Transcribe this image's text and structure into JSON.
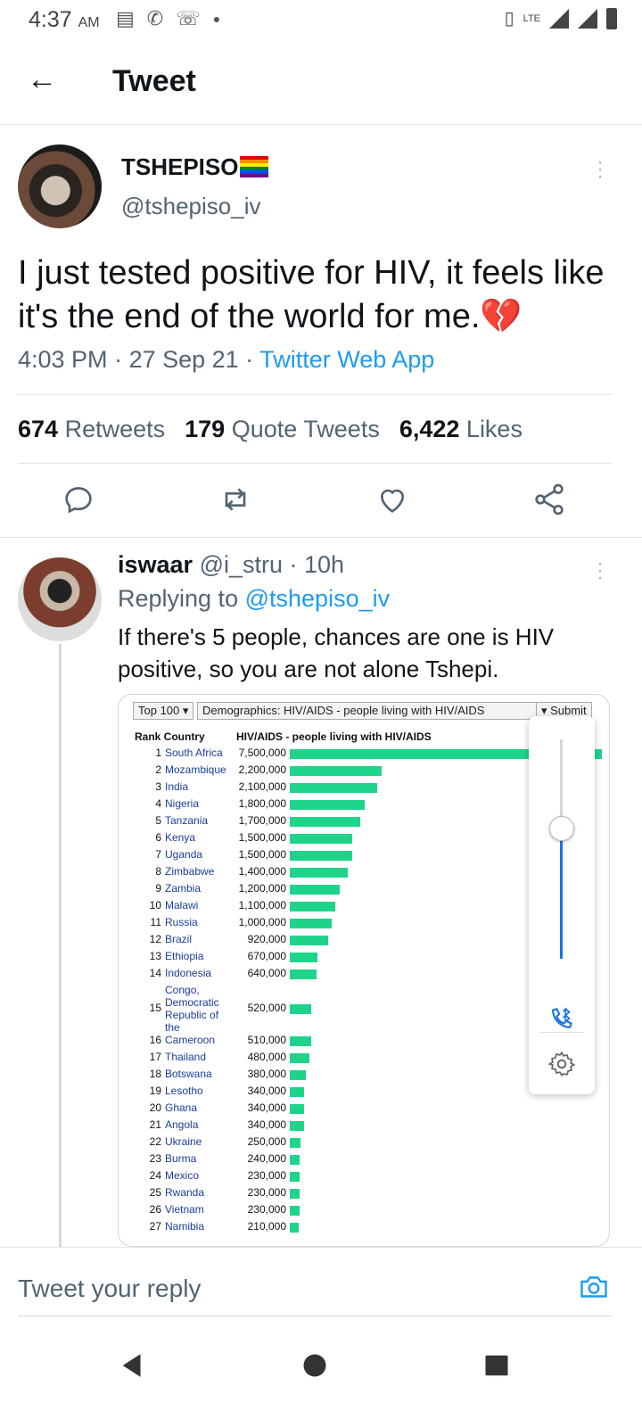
{
  "status_bar": {
    "time": "4:37",
    "ampm": "AM",
    "lte": "LTE"
  },
  "header": {
    "title": "Tweet"
  },
  "tweet": {
    "display_name": "TSHEPISO",
    "handle": "@tshepiso_iv",
    "text": "I just tested positive for HIV, it feels like it's the end of the world for me.",
    "emoji": "💔",
    "time": "4:03 PM",
    "date": "27 Sep 21",
    "source": "Twitter Web App",
    "stats": {
      "retweets_count": "674",
      "retweets_label": "Retweets",
      "quotes_count": "179",
      "quotes_label": "Quote Tweets",
      "likes_count": "6,422",
      "likes_label": "Likes"
    }
  },
  "reply": {
    "display_name": "iswaar",
    "handle": "@i_stru",
    "age": "10h",
    "replying_label": "Replying to",
    "replying_to": "@tshepiso_iv",
    "text": "If there's 5 people, chances are one is HIV positive, so you are not alone Tshepi."
  },
  "media": {
    "select_top": "Top 100 ▾",
    "select_topic": "Demographics: HIV/AIDS - people living with HIV/AIDS",
    "submit": "▾ Submit",
    "col_rank_country": "Rank Country",
    "col_value": "HIV/AIDS - people living with HIV/AIDS"
  },
  "chart_data": {
    "type": "bar",
    "title": "HIV/AIDS - people living with HIV/AIDS",
    "categories": [
      "South Africa",
      "Mozambique",
      "India",
      "Nigeria",
      "Tanzania",
      "Kenya",
      "Uganda",
      "Zimbabwe",
      "Zambia",
      "Malawi",
      "Russia",
      "Brazil",
      "Ethiopia",
      "Indonesia",
      "Congo, Democratic Republic of the",
      "Cameroon",
      "Thailand",
      "Botswana",
      "Lesotho",
      "Ghana",
      "Angola",
      "Ukraine",
      "Burma",
      "Mexico",
      "Rwanda",
      "Vietnam",
      "Namibia"
    ],
    "values": [
      7500000,
      2200000,
      2100000,
      1800000,
      1700000,
      1500000,
      1500000,
      1400000,
      1200000,
      1100000,
      1000000,
      920000,
      670000,
      640000,
      520000,
      510000,
      480000,
      380000,
      340000,
      340000,
      340000,
      250000,
      240000,
      230000,
      230000,
      230000,
      210000
    ],
    "labels": [
      "7,500,000",
      "2,200,000",
      "2,100,000",
      "1,800,000",
      "1,700,000",
      "1,500,000",
      "1,500,000",
      "1,400,000",
      "1,200,000",
      "1,100,000",
      "1,000,000",
      "920,000",
      "670,000",
      "640,000",
      "520,000",
      "510,000",
      "480,000",
      "380,000",
      "340,000",
      "340,000",
      "340,000",
      "250,000",
      "240,000",
      "230,000",
      "230,000",
      "230,000",
      "210,000"
    ]
  },
  "compose": {
    "placeholder": "Tweet your reply"
  }
}
